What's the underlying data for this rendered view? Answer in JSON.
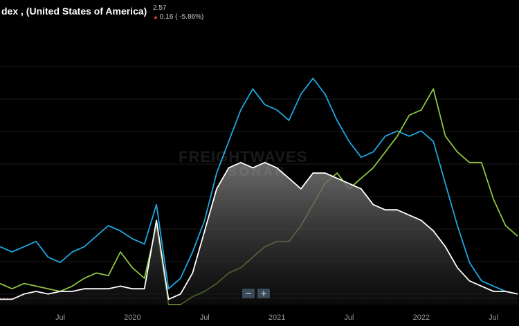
{
  "header": {
    "title": "dex , (United States of America)",
    "value": "2.57",
    "change": "0.16 ( -5.86%)",
    "change_direction": "down"
  },
  "watermark": {
    "line1": "FREIGHTWAVES",
    "line2": "SONAR"
  },
  "zoom": {
    "out_label": "−",
    "in_label": "+"
  },
  "colors": {
    "background": "#000000",
    "blue": "#1ea7e1",
    "green": "#8dc63f",
    "white": "#ffffff",
    "grid": "#1c1c1c",
    "baseline": "#e84d4d"
  },
  "chart_data": {
    "type": "line",
    "x_range": [
      "2019-02",
      "2022-09"
    ],
    "x_ticks": [
      {
        "label": "Jul",
        "date": "2019-07"
      },
      {
        "label": "2020",
        "date": "2020-01"
      },
      {
        "label": "Jul",
        "date": "2020-07"
      },
      {
        "label": "2021",
        "date": "2021-01"
      },
      {
        "label": "Jul",
        "date": "2021-07"
      },
      {
        "label": "2022",
        "date": "2022-01"
      },
      {
        "label": "Jul",
        "date": "2022-07"
      }
    ],
    "grid": true,
    "series": [
      {
        "color": "#1ea7e1",
        "points": [
          [
            "2019-02",
            0.22
          ],
          [
            "2019-03",
            0.2
          ],
          [
            "2019-04",
            0.22
          ],
          [
            "2019-05",
            0.24
          ],
          [
            "2019-06",
            0.18
          ],
          [
            "2019-07",
            0.16
          ],
          [
            "2019-08",
            0.2
          ],
          [
            "2019-09",
            0.22
          ],
          [
            "2019-10",
            0.26
          ],
          [
            "2019-11",
            0.3
          ],
          [
            "2019-12",
            0.28
          ],
          [
            "2020-01",
            0.25
          ],
          [
            "2020-02",
            0.23
          ],
          [
            "2020-03",
            0.38
          ],
          [
            "2020-04",
            0.06
          ],
          [
            "2020-05",
            0.1
          ],
          [
            "2020-06",
            0.2
          ],
          [
            "2020-07",
            0.32
          ],
          [
            "2020-08",
            0.5
          ],
          [
            "2020-09",
            0.62
          ],
          [
            "2020-10",
            0.74
          ],
          [
            "2020-11",
            0.82
          ],
          [
            "2020-12",
            0.76
          ],
          [
            "2021-01",
            0.74
          ],
          [
            "2021-02",
            0.7
          ],
          [
            "2021-03",
            0.8
          ],
          [
            "2021-04",
            0.86
          ],
          [
            "2021-05",
            0.8
          ],
          [
            "2021-06",
            0.7
          ],
          [
            "2021-07",
            0.62
          ],
          [
            "2021-08",
            0.56
          ],
          [
            "2021-09",
            0.58
          ],
          [
            "2021-10",
            0.64
          ],
          [
            "2021-11",
            0.66
          ],
          [
            "2021-12",
            0.64
          ],
          [
            "2022-01",
            0.66
          ],
          [
            "2022-02",
            0.62
          ],
          [
            "2022-03",
            0.46
          ],
          [
            "2022-04",
            0.3
          ],
          [
            "2022-05",
            0.16
          ],
          [
            "2022-06",
            0.09
          ],
          [
            "2022-07",
            0.07
          ],
          [
            "2022-08",
            0.05
          ],
          [
            "2022-09",
            0.04
          ]
        ]
      },
      {
        "color": "#8dc63f",
        "points": [
          [
            "2019-02",
            0.08
          ],
          [
            "2019-03",
            0.06
          ],
          [
            "2019-04",
            0.08
          ],
          [
            "2019-05",
            0.07
          ],
          [
            "2019-06",
            0.06
          ],
          [
            "2019-07",
            0.05
          ],
          [
            "2019-08",
            0.07
          ],
          [
            "2019-09",
            0.1
          ],
          [
            "2019-10",
            0.12
          ],
          [
            "2019-11",
            0.11
          ],
          [
            "2019-12",
            0.2
          ],
          [
            "2020-01",
            0.14
          ],
          [
            "2020-02",
            0.1
          ],
          [
            "2020-03",
            0.3
          ],
          [
            "2020-04",
            0.0
          ],
          [
            "2020-05",
            0.0
          ],
          [
            "2020-06",
            0.03
          ],
          [
            "2020-07",
            0.05
          ],
          [
            "2020-08",
            0.08
          ],
          [
            "2020-09",
            0.12
          ],
          [
            "2020-10",
            0.14
          ],
          [
            "2020-11",
            0.18
          ],
          [
            "2020-12",
            0.22
          ],
          [
            "2021-01",
            0.24
          ],
          [
            "2021-02",
            0.24
          ],
          [
            "2021-03",
            0.3
          ],
          [
            "2021-04",
            0.38
          ],
          [
            "2021-05",
            0.46
          ],
          [
            "2021-06",
            0.5
          ],
          [
            "2021-07",
            0.44
          ],
          [
            "2021-08",
            0.48
          ],
          [
            "2021-09",
            0.52
          ],
          [
            "2021-10",
            0.58
          ],
          [
            "2021-11",
            0.64
          ],
          [
            "2021-12",
            0.72
          ],
          [
            "2022-01",
            0.74
          ],
          [
            "2022-02",
            0.82
          ],
          [
            "2022-03",
            0.64
          ],
          [
            "2022-04",
            0.58
          ],
          [
            "2022-05",
            0.54
          ],
          [
            "2022-06",
            0.54
          ],
          [
            "2022-07",
            0.4
          ],
          [
            "2022-08",
            0.3
          ],
          [
            "2022-09",
            0.26
          ]
        ]
      },
      {
        "color": "#ffffff",
        "fill": "gradient-gray",
        "points": [
          [
            "2019-02",
            0.02
          ],
          [
            "2019-03",
            0.02
          ],
          [
            "2019-04",
            0.04
          ],
          [
            "2019-05",
            0.05
          ],
          [
            "2019-06",
            0.04
          ],
          [
            "2019-07",
            0.05
          ],
          [
            "2019-08",
            0.05
          ],
          [
            "2019-09",
            0.06
          ],
          [
            "2019-10",
            0.06
          ],
          [
            "2019-11",
            0.06
          ],
          [
            "2019-12",
            0.07
          ],
          [
            "2020-01",
            0.06
          ],
          [
            "2020-02",
            0.06
          ],
          [
            "2020-03",
            0.32
          ],
          [
            "2020-04",
            0.02
          ],
          [
            "2020-05",
            0.04
          ],
          [
            "2020-06",
            0.12
          ],
          [
            "2020-07",
            0.28
          ],
          [
            "2020-08",
            0.44
          ],
          [
            "2020-09",
            0.52
          ],
          [
            "2020-10",
            0.54
          ],
          [
            "2020-11",
            0.52
          ],
          [
            "2020-12",
            0.54
          ],
          [
            "2021-01",
            0.52
          ],
          [
            "2021-02",
            0.48
          ],
          [
            "2021-03",
            0.44
          ],
          [
            "2021-04",
            0.5
          ],
          [
            "2021-05",
            0.5
          ],
          [
            "2021-06",
            0.48
          ],
          [
            "2021-07",
            0.46
          ],
          [
            "2021-08",
            0.44
          ],
          [
            "2021-09",
            0.38
          ],
          [
            "2021-10",
            0.36
          ],
          [
            "2021-11",
            0.36
          ],
          [
            "2021-12",
            0.34
          ],
          [
            "2022-01",
            0.32
          ],
          [
            "2022-02",
            0.28
          ],
          [
            "2022-03",
            0.22
          ],
          [
            "2022-04",
            0.14
          ],
          [
            "2022-05",
            0.09
          ],
          [
            "2022-06",
            0.07
          ],
          [
            "2022-07",
            0.05
          ],
          [
            "2022-08",
            0.05
          ],
          [
            "2022-09",
            0.04
          ]
        ]
      }
    ]
  }
}
